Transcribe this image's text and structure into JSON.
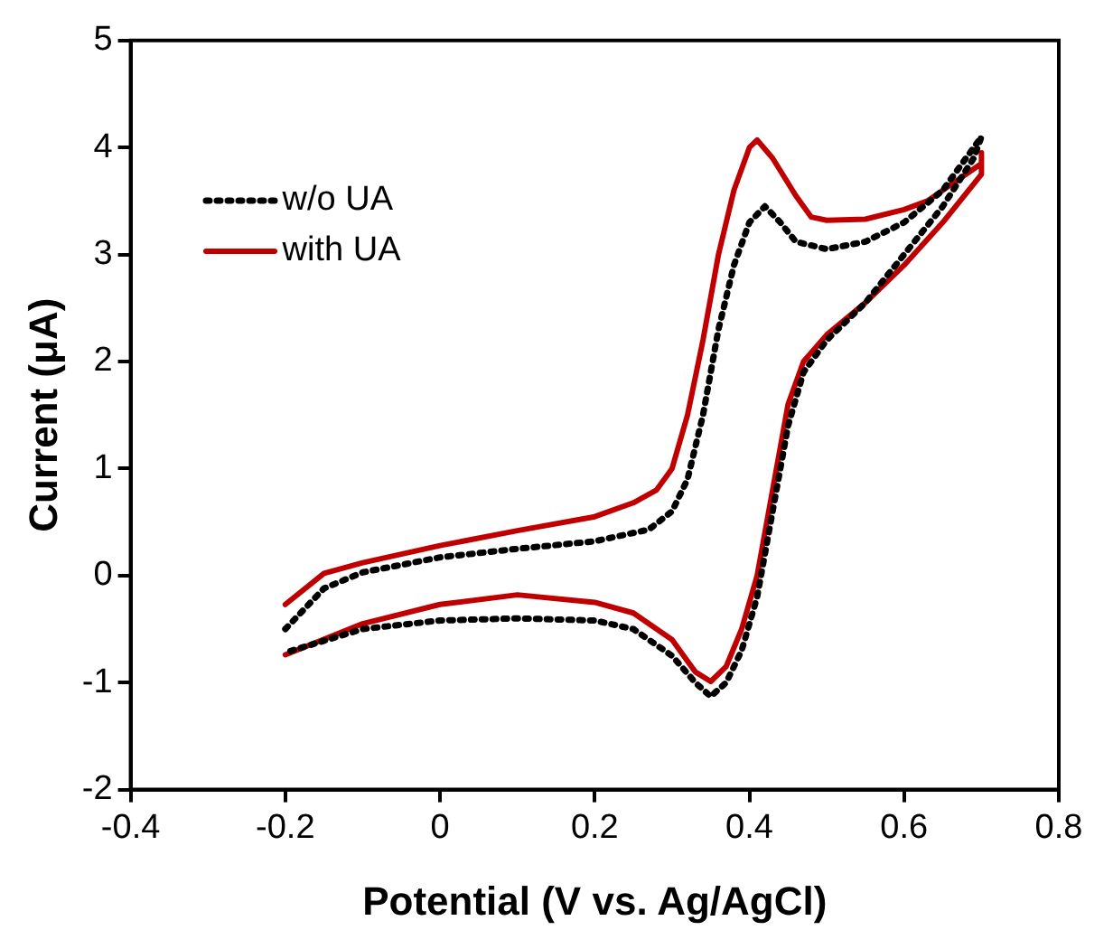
{
  "chart_data": {
    "type": "line",
    "xlabel": "Potential (V vs. Ag/AgCl)",
    "ylabel": "Current (μA)",
    "xlim": [
      -0.4,
      0.8
    ],
    "xticks": [
      -0.4,
      -0.2,
      0,
      0.2,
      0.4,
      0.6,
      0.8
    ],
    "ylim": [
      -2,
      5
    ],
    "yticks": [
      -2,
      -1,
      0,
      1,
      2,
      3,
      4,
      5
    ],
    "grid": false,
    "legend": "top left",
    "marker": "none",
    "series": [
      {
        "name": "w/o UA",
        "color": "#000000",
        "line_style": "dotted",
        "x": [
          -0.2,
          -0.15,
          -0.1,
          0,
          0.1,
          0.2,
          0.27,
          0.3,
          0.32,
          0.34,
          0.36,
          0.38,
          0.4,
          0.42,
          0.44,
          0.46,
          0.5,
          0.55,
          0.6,
          0.65,
          0.7,
          0.69,
          0.65,
          0.6,
          0.55,
          0.5,
          0.47,
          0.45,
          0.43,
          0.41,
          0.39,
          0.37,
          0.35,
          0.33,
          0.3,
          0.25,
          0.2,
          0.1,
          0,
          -0.1,
          -0.2
        ],
        "values": [
          -0.5,
          -0.12,
          0.03,
          0.17,
          0.25,
          0.32,
          0.43,
          0.6,
          0.9,
          1.5,
          2.3,
          2.9,
          3.3,
          3.45,
          3.3,
          3.12,
          3.05,
          3.12,
          3.3,
          3.6,
          4.1,
          3.9,
          3.45,
          3.0,
          2.55,
          2.2,
          1.9,
          1.4,
          0.6,
          -0.2,
          -0.7,
          -1.0,
          -1.13,
          -1.0,
          -0.75,
          -0.5,
          -0.42,
          -0.4,
          -0.42,
          -0.5,
          -0.72
        ]
      },
      {
        "name": "with UA",
        "color": "#c00000",
        "line_style": "solid",
        "x": [
          -0.2,
          -0.15,
          -0.1,
          0,
          0.1,
          0.2,
          0.25,
          0.28,
          0.3,
          0.32,
          0.34,
          0.36,
          0.38,
          0.4,
          0.41,
          0.43,
          0.46,
          0.48,
          0.5,
          0.55,
          0.6,
          0.63,
          0.66,
          0.7,
          0.7,
          0.7,
          0.65,
          0.6,
          0.55,
          0.5,
          0.47,
          0.45,
          0.43,
          0.41,
          0.39,
          0.37,
          0.35,
          0.33,
          0.3,
          0.25,
          0.2,
          0.1,
          0,
          -0.1,
          -0.2
        ],
        "values": [
          -0.27,
          0.02,
          0.12,
          0.28,
          0.42,
          0.55,
          0.68,
          0.8,
          1.0,
          1.5,
          2.2,
          3.0,
          3.6,
          4.0,
          4.07,
          3.9,
          3.55,
          3.35,
          3.32,
          3.33,
          3.42,
          3.5,
          3.65,
          3.85,
          3.95,
          3.75,
          3.3,
          2.9,
          2.55,
          2.25,
          2.0,
          1.6,
          0.8,
          0.0,
          -0.5,
          -0.85,
          -0.99,
          -0.9,
          -0.6,
          -0.35,
          -0.25,
          -0.18,
          -0.27,
          -0.45,
          -0.74
        ]
      }
    ]
  }
}
